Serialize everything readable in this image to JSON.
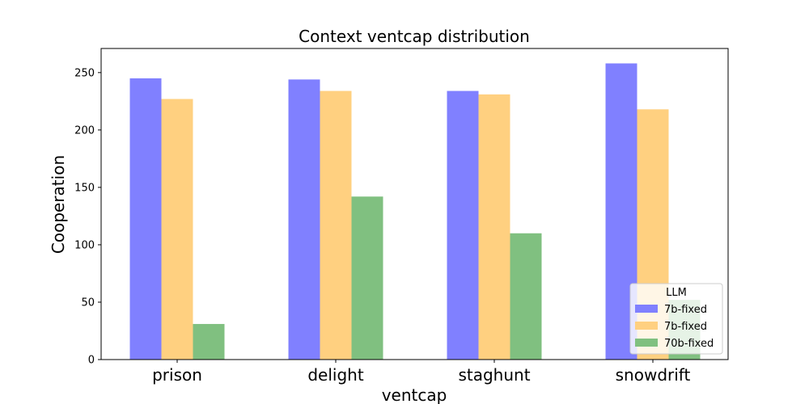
{
  "chart_data": {
    "type": "bar",
    "title": "Context ventcap distribution",
    "xlabel": "ventcap",
    "ylabel": "Cooperation",
    "categories": [
      "prison",
      "delight",
      "staghunt",
      "snowdrift"
    ],
    "series": [
      {
        "name": "7b-fixed",
        "color": "#8080ff",
        "values": [
          245,
          244,
          234,
          258
        ]
      },
      {
        "name": "7b-fixed",
        "color": "#ffd080",
        "values": [
          227,
          234,
          231,
          218
        ]
      },
      {
        "name": "70b-fixed",
        "color": "#80c080",
        "values": [
          31,
          142,
          110,
          52
        ]
      }
    ],
    "ylim": [
      0,
      271
    ],
    "yticks": [
      0,
      50,
      100,
      150,
      200,
      250
    ],
    "grid": false,
    "legend": {
      "title": "LLM",
      "placement": "lower-right"
    }
  }
}
